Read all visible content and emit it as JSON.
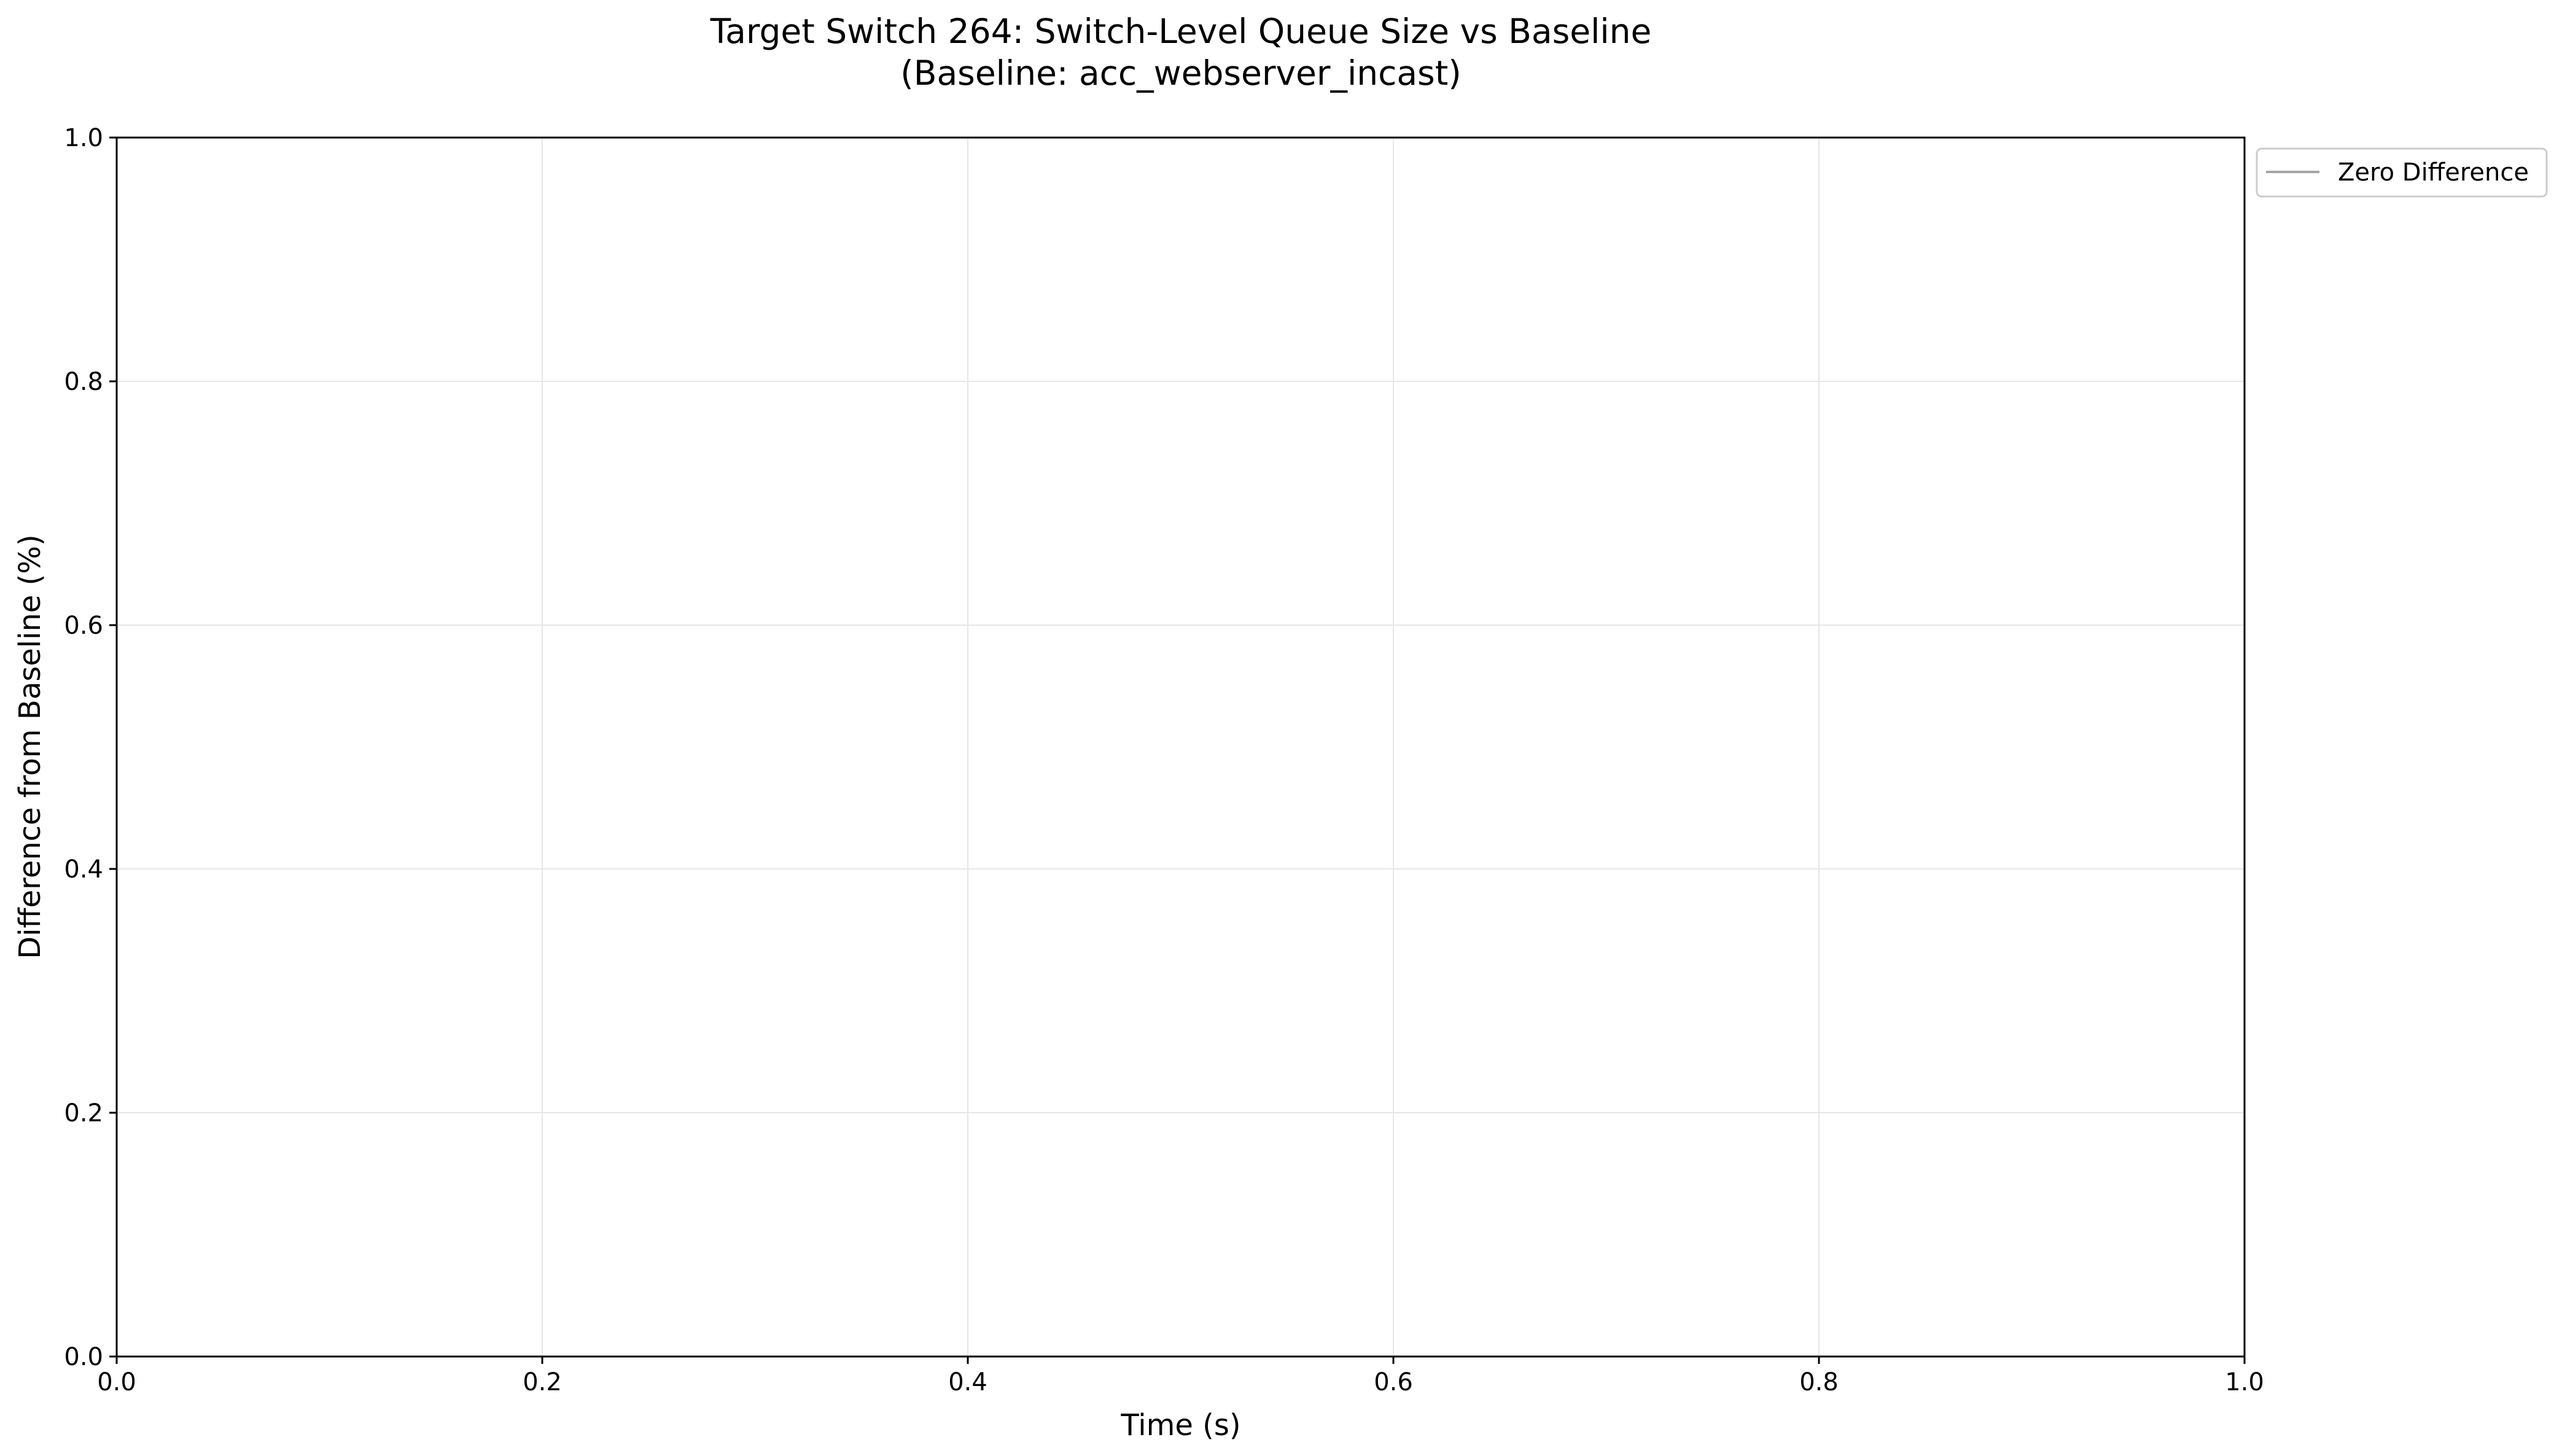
{
  "chart_data": {
    "type": "line",
    "title": "Target Switch 264: Switch-Level Queue Size vs Baseline",
    "subtitle": "(Baseline: acc_webserver_incast)",
    "xlabel": "Time (s)",
    "ylabel": "Difference from Baseline (%)",
    "xlim": [
      0.0,
      1.0
    ],
    "ylim": [
      0.0,
      1.0
    ],
    "xticks": [
      {
        "value": 0.0,
        "label": "0.0"
      },
      {
        "value": 0.2,
        "label": "0.2"
      },
      {
        "value": 0.4,
        "label": "0.4"
      },
      {
        "value": 0.6,
        "label": "0.6"
      },
      {
        "value": 0.8,
        "label": "0.8"
      },
      {
        "value": 1.0,
        "label": "1.0"
      }
    ],
    "yticks": [
      {
        "value": 0.0,
        "label": "0.0"
      },
      {
        "value": 0.2,
        "label": "0.2"
      },
      {
        "value": 0.4,
        "label": "0.4"
      },
      {
        "value": 0.6,
        "label": "0.6"
      },
      {
        "value": 0.8,
        "label": "0.8"
      },
      {
        "value": 1.0,
        "label": "1.0"
      }
    ],
    "grid": true,
    "legend_position": "outside-top-right",
    "series": [
      {
        "name": "Zero Difference",
        "color": "#a6a6a6",
        "x": [],
        "y": []
      }
    ]
  }
}
